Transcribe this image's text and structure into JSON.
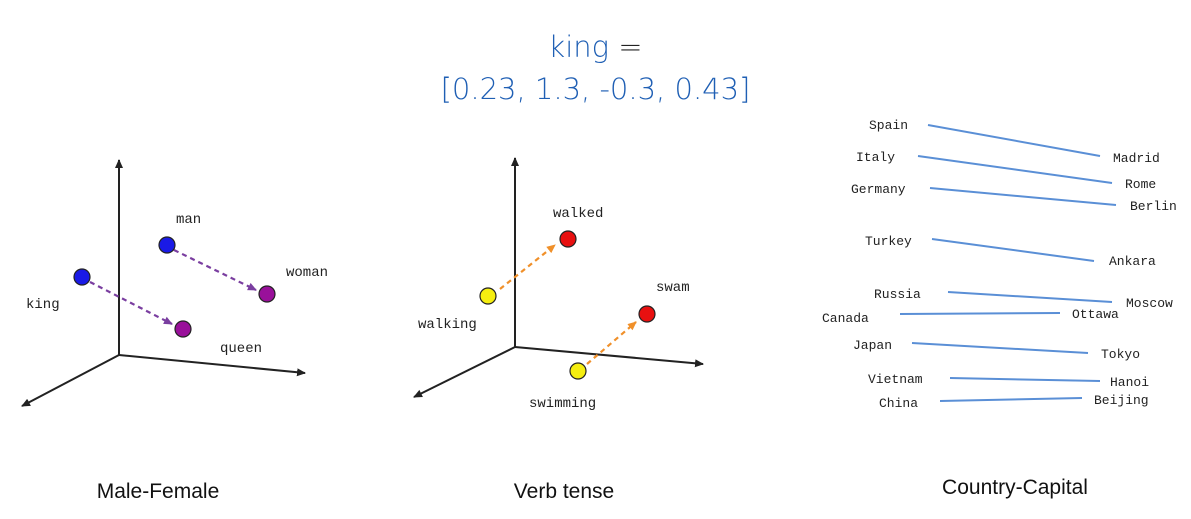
{
  "header": {
    "word": "king",
    "equals": "=",
    "vector_text": "[0.23, 1.3, -0.3, 0.43]"
  },
  "colors": {
    "title": "#1f5fb4",
    "male": "#1a1ae6",
    "female": "#99109a",
    "male_female_arrow": "#7a3ea0",
    "present": "#f5ee10",
    "past": "#e81010",
    "tense_arrow": "#f0902a",
    "capital_line": "#5a8fd6"
  },
  "panels": {
    "male_female": {
      "caption": "Male-Female",
      "labels": {
        "king": "king",
        "queen": "queen",
        "man": "man",
        "woman": "woman"
      }
    },
    "verb_tense": {
      "caption": "Verb tense",
      "labels": {
        "walking": "walking",
        "walked": "walked",
        "swimming": "swimming",
        "swam": "swam"
      }
    },
    "country_capital": {
      "caption": "Country-Capital",
      "pairs": [
        {
          "country": "Spain",
          "capital": "Madrid"
        },
        {
          "country": "Italy",
          "capital": "Rome"
        },
        {
          "country": "Germany",
          "capital": "Berlin"
        },
        {
          "country": "Turkey",
          "capital": "Ankara"
        },
        {
          "country": "Russia",
          "capital": "Moscow"
        },
        {
          "country": "Canada",
          "capital": "Ottawa"
        },
        {
          "country": "Japan",
          "capital": "Tokyo"
        },
        {
          "country": "Vietnam",
          "capital": "Hanoi"
        },
        {
          "country": "China",
          "capital": "Beijing"
        }
      ]
    }
  }
}
